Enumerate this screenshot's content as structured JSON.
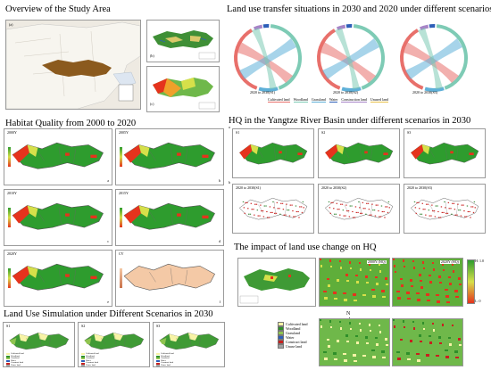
{
  "sections": {
    "overview": "Overview of the Study Area",
    "transfer": "Land use transfer situations in 2030 and 2020 under different scenarios",
    "hq_history": "Habitat Quality  from 2000 to 2020",
    "hq_scenarios": "HQ in the Yangtze River Basin under different scenarios in 2030",
    "impact": "The impact of land use change on HQ",
    "simulation": "Land Use Simulation under Different Scenarios in 2030"
  },
  "overview_panels": [
    "(a)",
    "(b)",
    "(c)"
  ],
  "chords": [
    {
      "caption": "2020 to 2030(S1)"
    },
    {
      "caption": "2020 to 2030(S2)"
    },
    {
      "caption": "2020 to 2030(S3)"
    }
  ],
  "chord_legend": [
    "Cultivated land",
    "Woodland",
    "Grassland",
    "Water",
    "Construction land",
    "Unused land"
  ],
  "hq_years": [
    {
      "label": "2000Y",
      "tag": "a"
    },
    {
      "label": "2005Y",
      "tag": "b"
    },
    {
      "label": "2010Y",
      "tag": "c"
    },
    {
      "label": "2015Y",
      "tag": "d"
    },
    {
      "label": "2020Y",
      "tag": "e"
    },
    {
      "label": "CV",
      "tag": "f"
    }
  ],
  "scenario_top": [
    {
      "label": "S1"
    },
    {
      "label": "S2"
    },
    {
      "label": "S3"
    }
  ],
  "scenario_change": [
    {
      "label": "2020 to 2030(S1)"
    },
    {
      "label": "2020 to 2030(S2)"
    },
    {
      "label": "2020 to 2030(S3)"
    }
  ],
  "scenario_tags": {
    "top": "a",
    "bottom": "b"
  },
  "impact_panels": [
    {
      "label": "2000Y (HQ)"
    },
    {
      "label": "2020Y (HQ)"
    }
  ],
  "impact_scale": {
    "high": "H: 1.0",
    "low": "L: 0"
  },
  "land_legend": [
    {
      "label": "Cultivated land",
      "color": "#f7f3a6"
    },
    {
      "label": "Woodland",
      "color": "#2f8f2a"
    },
    {
      "label": "Grassland",
      "color": "#8fc44f"
    },
    {
      "label": "Water",
      "color": "#2e5fb8"
    },
    {
      "label": "Construct land",
      "color": "#c8201e"
    },
    {
      "label": "Unuse land",
      "color": "#a0a0a0"
    }
  ],
  "simulation_panels": [
    {
      "label": "S1"
    },
    {
      "label": "S2"
    },
    {
      "label": "S3"
    }
  ],
  "north_label": "N",
  "colors": {
    "hq_high": "#2e9c2e",
    "hq_mid": "#d6e04a",
    "hq_low": "#e5331d",
    "cv": "#f4c9a6",
    "chord_red": "#e8706b",
    "chord_blue": "#5fb0d8",
    "chord_teal": "#7ecbb5",
    "chord_purple": "#a784c7",
    "overview_basin": "#8b5a1e"
  }
}
